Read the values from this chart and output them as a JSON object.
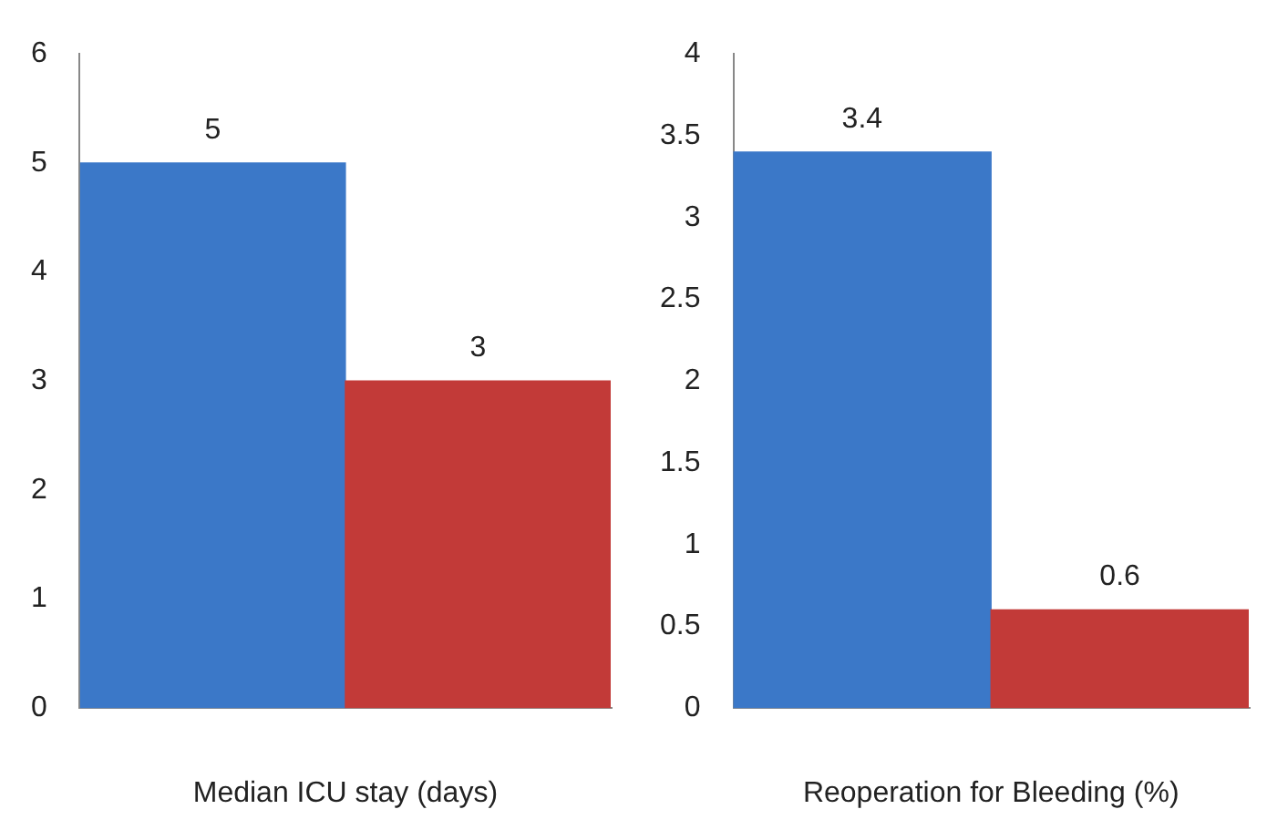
{
  "chart_data": [
    {
      "type": "bar",
      "xlabel": "Median ICU stay (days)",
      "categories": [
        null,
        null
      ],
      "values": [
        5,
        3
      ],
      "colors": [
        "#3b78c8",
        "#c23a38"
      ],
      "ylim": [
        0,
        6
      ],
      "yticks": [
        0,
        1,
        2,
        3,
        4,
        5,
        6
      ],
      "data_labels": true
    },
    {
      "type": "bar",
      "xlabel": "Reoperation for Bleeding (%)",
      "categories": [
        null,
        null
      ],
      "values": [
        3.4,
        0.6
      ],
      "colors": [
        "#3b78c8",
        "#c23a38"
      ],
      "ylim": [
        0,
        4
      ],
      "yticks": [
        0,
        0.5,
        1,
        1.5,
        2,
        2.5,
        3,
        3.5,
        4
      ],
      "data_labels": true
    }
  ]
}
